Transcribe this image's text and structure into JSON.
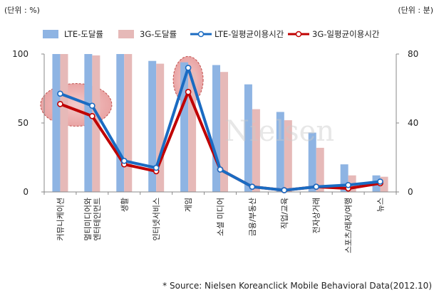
{
  "chart_data": {
    "type": "bar",
    "unit_left": "(단위 : %)",
    "unit_right": "(단위 : 분)",
    "categories": [
      [
        "커뮤니케이션"
      ],
      [
        "멀티미디어와",
        "엔터테인먼트"
      ],
      [
        "생활"
      ],
      [
        "인터넷서비스"
      ],
      [
        "게임"
      ],
      [
        "소셜 미디어"
      ],
      [
        "금융/부동산"
      ],
      [
        "직업/교육"
      ],
      [
        "전자상거래"
      ],
      [
        "스포츠/레저/여행"
      ],
      [
        "뉴스"
      ]
    ],
    "series": [
      {
        "name": "LTE-도달률",
        "kind": "bar",
        "axis": "left",
        "color": "#8eb4e3",
        "values": [
          100,
          100,
          100,
          95,
          94,
          92,
          78,
          58,
          43,
          20,
          12
        ]
      },
      {
        "name": "3G-도달률",
        "kind": "bar",
        "axis": "left",
        "color": "#e6b9b8",
        "values": [
          100,
          99,
          100,
          93,
          87,
          87,
          60,
          52,
          32,
          12,
          11
        ]
      },
      {
        "name": "LTE-일평균이용시간",
        "kind": "line",
        "axis": "right",
        "color": "#1a6bc2",
        "values": [
          57,
          50,
          18,
          14,
          72,
          13,
          3,
          1,
          3,
          4,
          6
        ]
      },
      {
        "name": "3G-일평균이용시간",
        "kind": "line",
        "axis": "right",
        "color": "#c00000",
        "values": [
          51,
          44,
          16,
          12,
          58,
          13,
          3,
          1,
          3,
          2,
          5
        ]
      }
    ],
    "y_left": {
      "min": 0,
      "max": 100,
      "ticks": [
        0,
        50,
        100
      ]
    },
    "y_right": {
      "min": 0,
      "max": 80,
      "ticks": [
        0,
        40,
        80
      ]
    },
    "highlights": [
      0,
      4
    ],
    "watermark": "Nielsen",
    "legend": "top",
    "grid": false
  },
  "source": "* Source: Nielsen Koreanclick Mobile Behavioral Data(2012.10)"
}
